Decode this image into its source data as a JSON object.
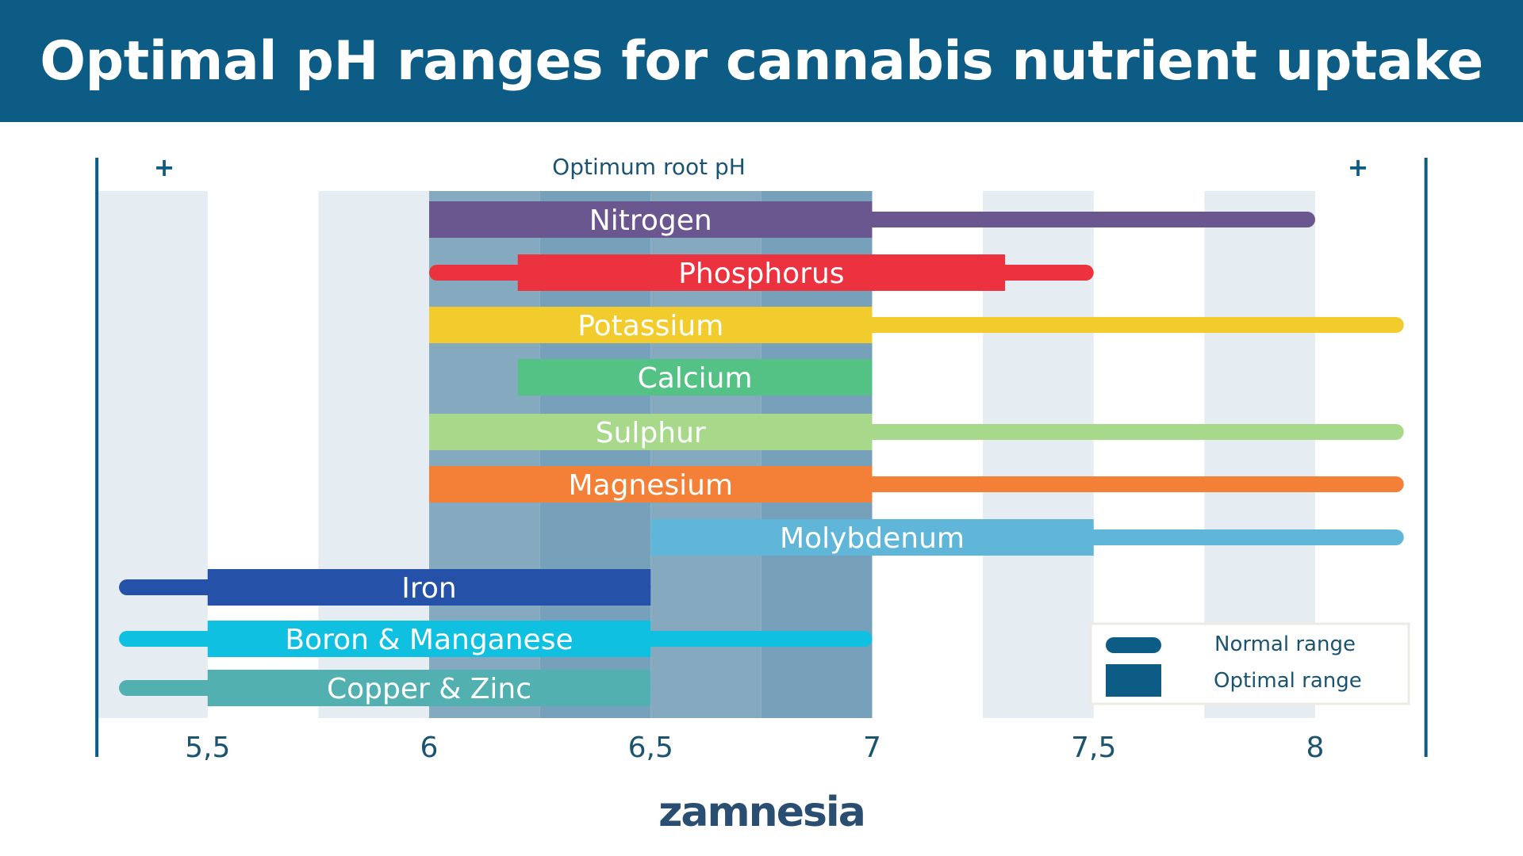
{
  "title": "Optimal pH ranges for cannabis nutrient uptake",
  "logo_text": "zamnesia",
  "chart_data": {
    "type": "bar",
    "subtype": "horizontal range bars",
    "title": "Optimal pH ranges for cannabis nutrient uptake",
    "top_label": "Optimum root pH",
    "top_markers": [
      "+",
      "+"
    ],
    "xlim": [
      5.25,
      8.25
    ],
    "optimum_zone": [
      6,
      7
    ],
    "x_ticks": [
      5.5,
      6,
      6.5,
      7,
      7.5,
      8
    ],
    "x_tick_labels": [
      "5,5",
      "6",
      "6,5",
      "7",
      "7,5",
      "8"
    ],
    "legend": {
      "placement": "bottom-right",
      "entries": [
        "Normal range",
        "Optimal range"
      ]
    },
    "series": [
      {
        "name": "Nitrogen",
        "color": "#6b5790",
        "normal": [
          6,
          8
        ],
        "optimal": [
          6,
          7
        ]
      },
      {
        "name": "Phosphorus",
        "color": "#ec323f",
        "normal": [
          6,
          7.5
        ],
        "optimal": [
          6.2,
          7.3
        ]
      },
      {
        "name": "Potassium",
        "color": "#f2cb2c",
        "normal": [
          6,
          8.2
        ],
        "optimal": [
          6,
          7
        ]
      },
      {
        "name": "Calcium",
        "color": "#55c285",
        "normal": null,
        "optimal": [
          6.2,
          7
        ]
      },
      {
        "name": "Sulphur",
        "color": "#a8d98a",
        "normal": [
          6,
          8.2
        ],
        "optimal": [
          6,
          7
        ]
      },
      {
        "name": "Magnesium",
        "color": "#f47f36",
        "normal": [
          6,
          8.2
        ],
        "optimal": [
          6,
          7
        ]
      },
      {
        "name": "Molybdenum",
        "color": "#5fb6d8",
        "normal": [
          6.5,
          8.2
        ],
        "optimal": [
          6.5,
          7.5
        ]
      },
      {
        "name": "Iron",
        "color": "#2552a8",
        "normal": [
          5.3,
          6.5
        ],
        "optimal": [
          5.5,
          6.5
        ]
      },
      {
        "name": "Boron & Manganese",
        "color": "#10c0e0",
        "normal": [
          5.3,
          7
        ],
        "optimal": [
          5.5,
          6.5
        ]
      },
      {
        "name": "Copper & Zinc",
        "color": "#52b0b0",
        "normal": [
          5.3,
          6.5
        ],
        "optimal": [
          5.5,
          6.5
        ]
      }
    ]
  },
  "colors": {
    "header": "#0d5c85",
    "axis_text": "#1b5470",
    "band_light": "#e5ecf2",
    "zone_a": "#85aabf",
    "zone_b": "#77a1ba",
    "legend_swatch": "#0d5c85"
  }
}
